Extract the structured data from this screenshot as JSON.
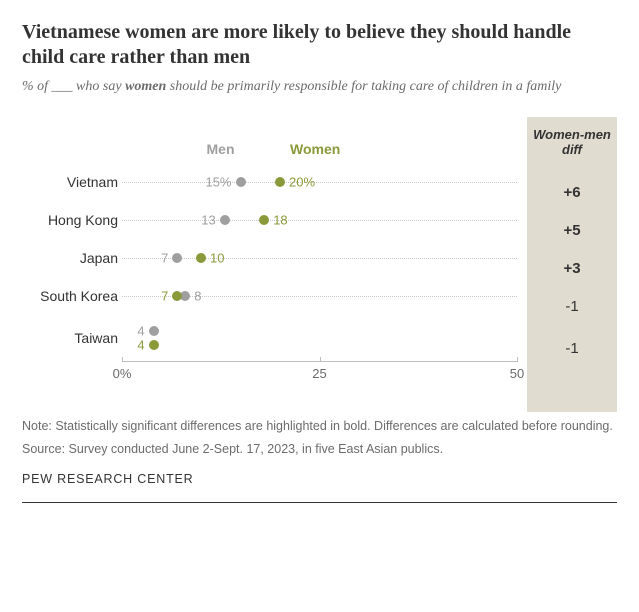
{
  "title": "Vietnamese women are more likely to believe they should handle child care rather than men",
  "subtitle_pre": "% of ___ who say ",
  "subtitle_bold": "women",
  "subtitle_post": " should be primarily responsible for taking care of children in a family",
  "legend": {
    "men": "Men",
    "women": "Women"
  },
  "diff_header": "Women-men diff",
  "colors": {
    "men": "#9f9f9f",
    "women": "#8a9a3a",
    "dotline": "#c8c8c8",
    "diff_bg": "#e0ddd0",
    "text": "#333333",
    "subtext": "#6b6b6b"
  },
  "axis": {
    "min": 0,
    "max": 50,
    "ticks": [
      0,
      25,
      50
    ],
    "tick_labels": [
      "0%",
      "25",
      "50"
    ]
  },
  "rows": [
    {
      "country": "Vietnam",
      "men": 15,
      "women": 20,
      "men_label": "15%",
      "women_label": "20%",
      "diff": "+6",
      "bold": true,
      "stack": false
    },
    {
      "country": "Hong Kong",
      "men": 13,
      "women": 18,
      "men_label": "13",
      "women_label": "18",
      "diff": "+5",
      "bold": true,
      "stack": false
    },
    {
      "country": "Japan",
      "men": 7,
      "women": 10,
      "men_label": "7",
      "women_label": "10",
      "diff": "+3",
      "bold": true,
      "stack": false
    },
    {
      "country": "South Korea",
      "men": 8,
      "women": 7,
      "men_label": "8",
      "women_label": "7",
      "diff": "-1",
      "bold": false,
      "stack": false
    },
    {
      "country": "Taiwan",
      "men": 4,
      "women": 4,
      "men_label": "4",
      "women_label": "4",
      "diff": "-1",
      "bold": false,
      "stack": true
    }
  ],
  "note": "Note: Statistically significant differences are highlighted in bold. Differences are calculated before rounding.",
  "source": "Source: Survey conducted June 2-Sept. 17, 2023, in five East Asian publics.",
  "footer": "PEW RESEARCH CENTER",
  "dot_size": 10,
  "label_fontsize": 13
}
